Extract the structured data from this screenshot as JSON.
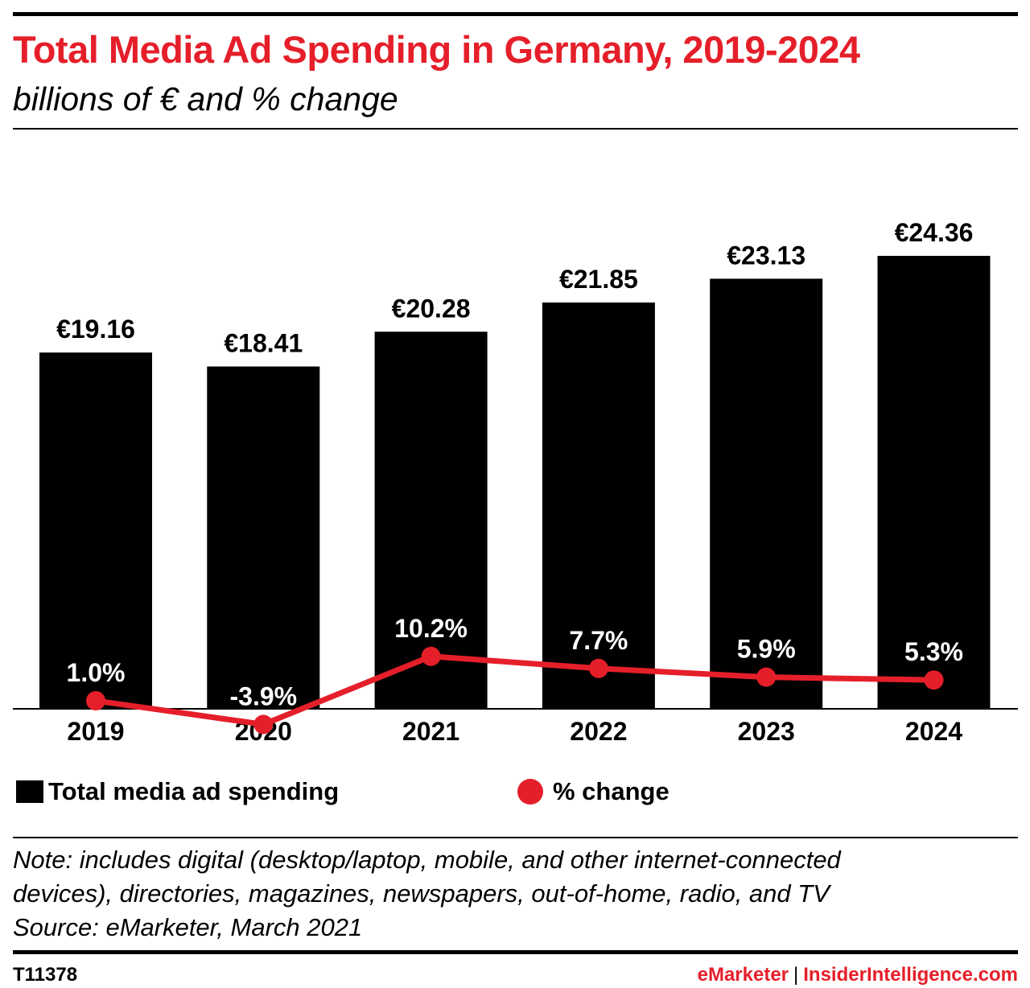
{
  "header": {
    "title": "Total Media Ad Spending in Germany, 2019-2024",
    "subtitle": "billions of € and % change"
  },
  "chart_data": {
    "type": "bar",
    "title": "Total Media Ad Spending in Germany, 2019-2024",
    "subtitle": "billions of € and % change",
    "categories": [
      "2019",
      "2020",
      "2021",
      "2022",
      "2023",
      "2024"
    ],
    "series": [
      {
        "name": "Total media ad spending",
        "type": "bar",
        "values": [
          19.16,
          18.41,
          20.28,
          21.85,
          23.13,
          24.36
        ],
        "labels": [
          "€19.16",
          "€18.41",
          "€20.28",
          "€21.85",
          "€23.13",
          "€24.36"
        ],
        "color": "#000000"
      },
      {
        "name": "% change",
        "type": "line",
        "values": [
          1.0,
          -3.9,
          10.2,
          7.7,
          5.9,
          5.3
        ],
        "labels": [
          "1.0%",
          "-3.9%",
          "10.2%",
          "7.7%",
          "5.9%",
          "5.3%"
        ],
        "color": "#e51f2a"
      }
    ],
    "ylim": [
      0,
      25
    ],
    "grid": false,
    "legend_position": "bottom"
  },
  "legend": {
    "bar_label": "Total media ad spending",
    "line_label": "% change"
  },
  "note": {
    "line1": "Note: includes digital (desktop/laptop, mobile, and other internet-connected",
    "line2": "devices), directories, magazines, newspapers, out-of-home, radio, and TV",
    "source": "Source: eMarketer, March 2021"
  },
  "footer": {
    "chart_id": "T11378",
    "brand_left": "eMarketer",
    "separator": "|",
    "brand_right": "InsiderIntelligence.com"
  }
}
